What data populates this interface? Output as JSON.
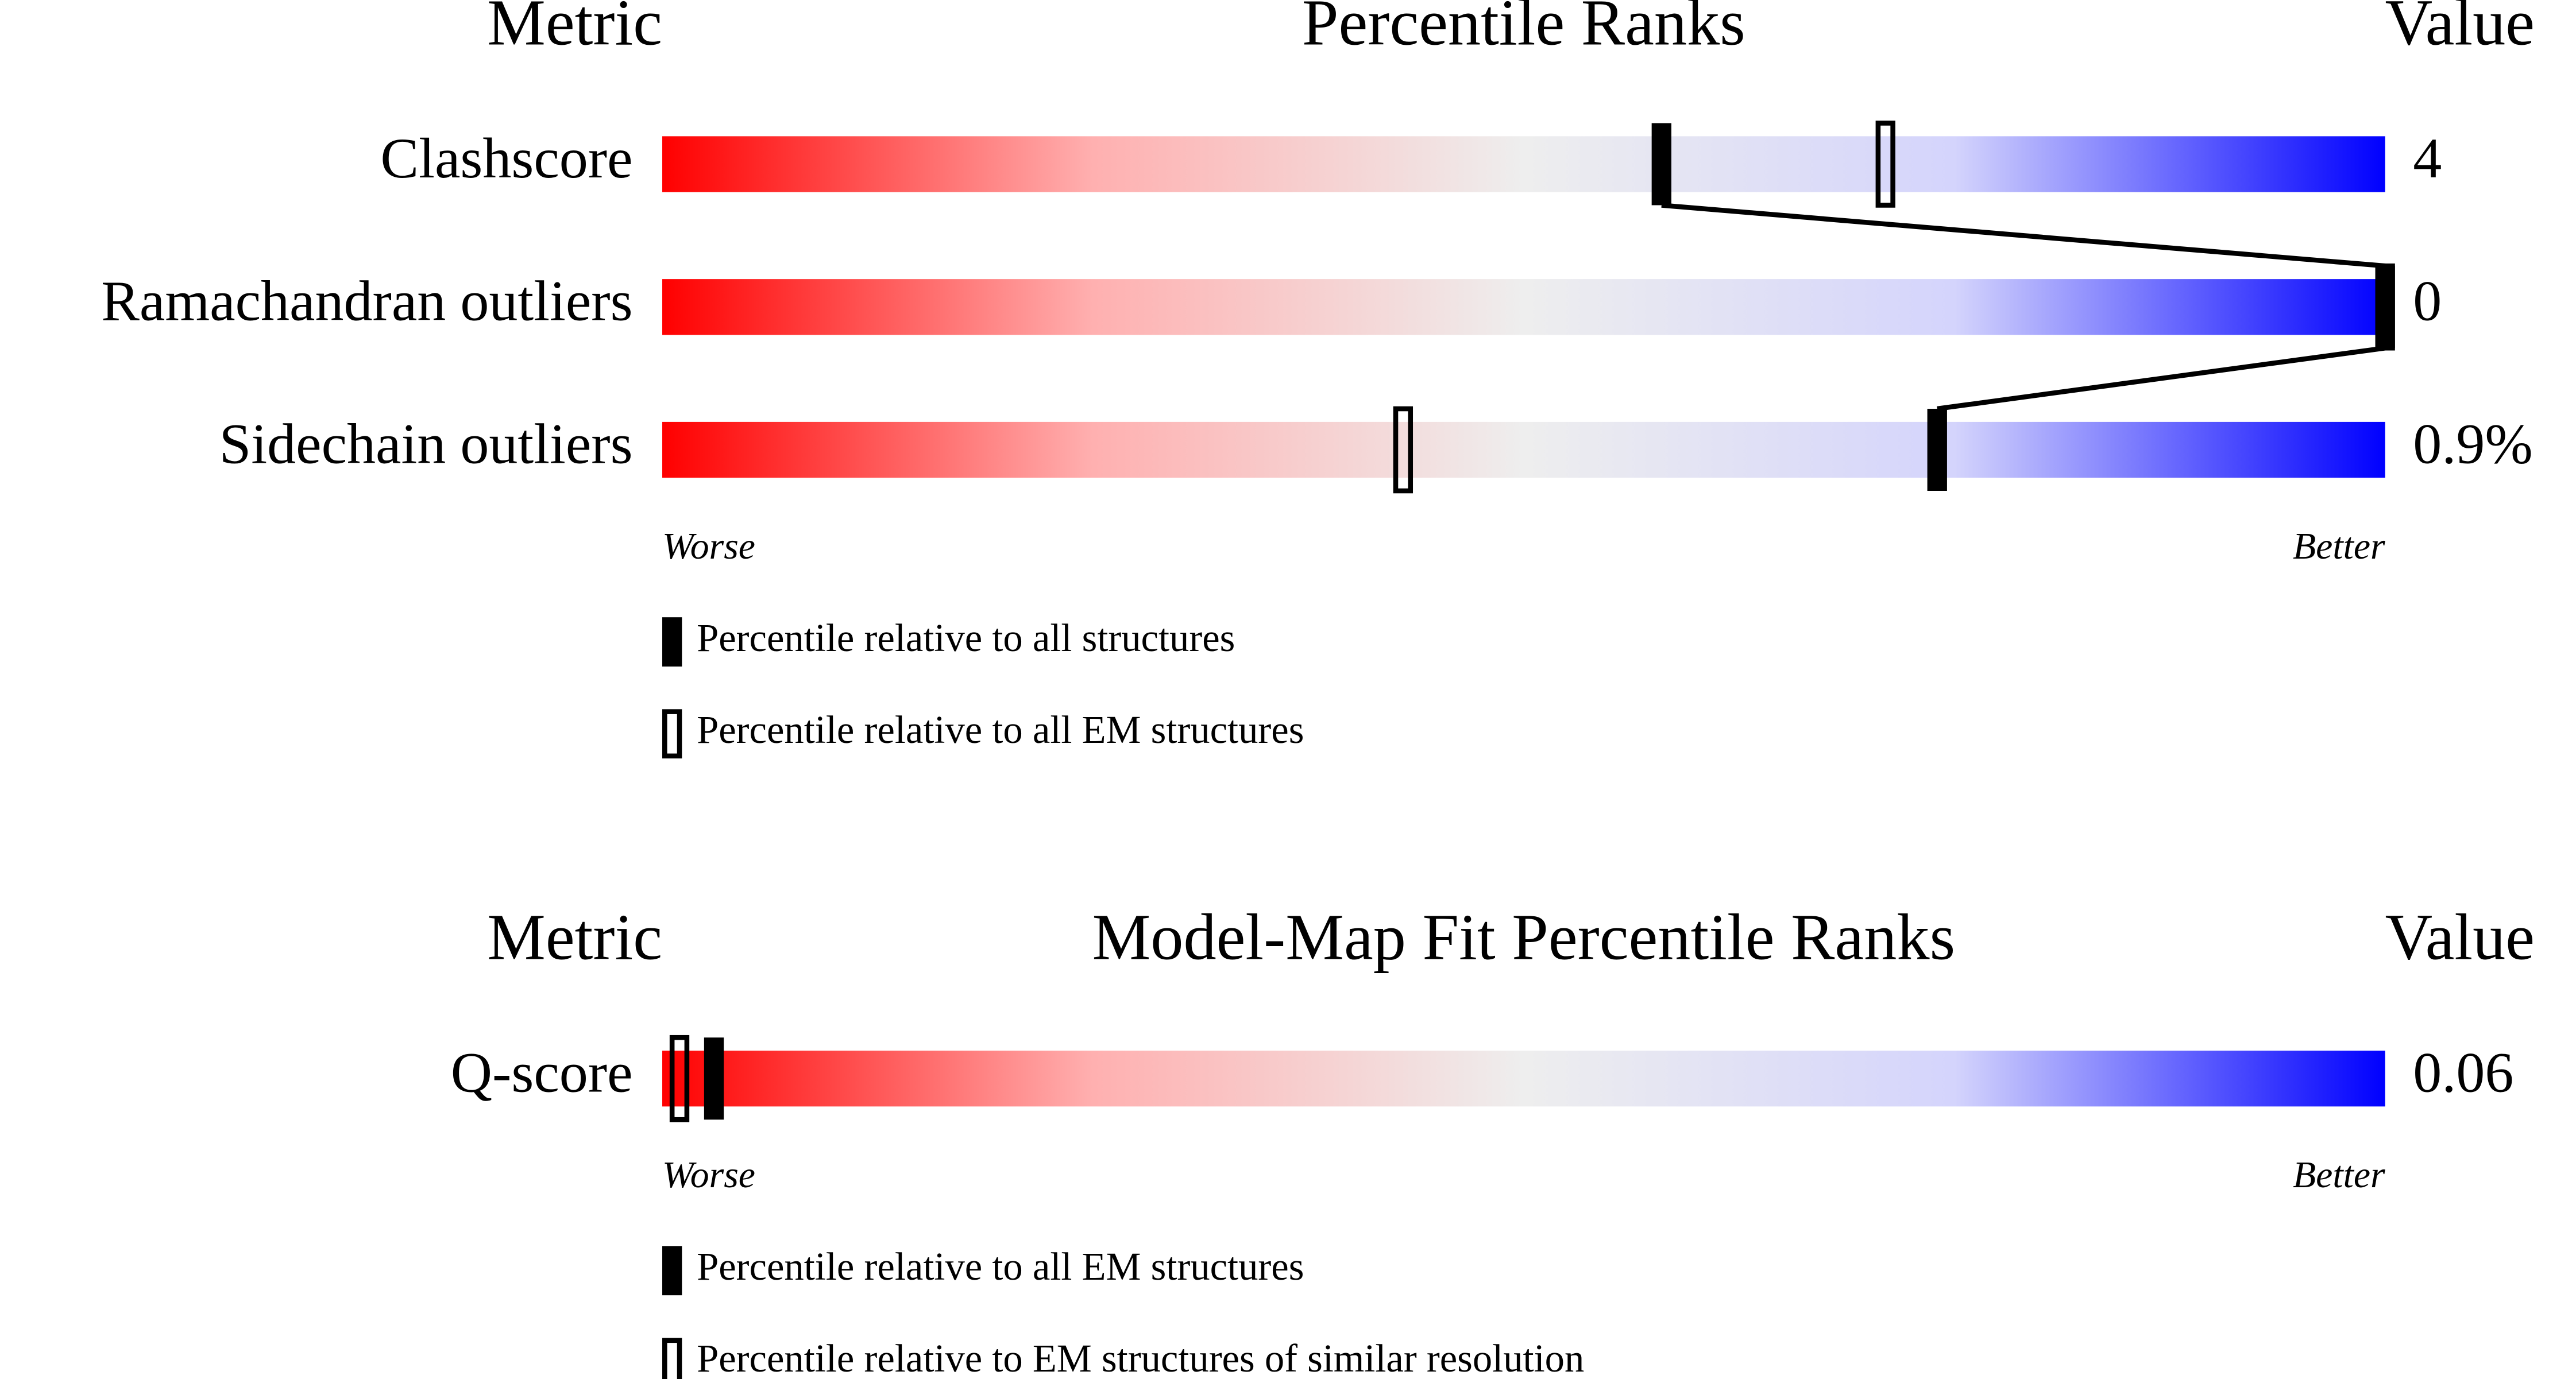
{
  "chart_data": [
    {
      "type": "slider",
      "headers": {
        "metric": "Metric",
        "title": "Percentile Ranks",
        "value": "Value"
      },
      "categories": [
        "Clashscore",
        "Ramachandran outliers",
        "Sidechain outliers"
      ],
      "metric_values": [
        "4",
        "0",
        "0.9%"
      ],
      "xlim": [
        0,
        100
      ],
      "worse": "Worse",
      "better": "Better",
      "gradient": [
        "#ff0000",
        "#ffb0b0",
        "#eeeeee",
        "#d4d4fc",
        "#0000ff"
      ],
      "series": [
        {
          "name": "Percentile relative to all structures",
          "style": "filled",
          "color": "#000000",
          "connect": true,
          "values": [
            58,
            100,
            74
          ]
        },
        {
          "name": "Percentile relative to all EM structures",
          "style": "open",
          "color": "#000000",
          "connect": false,
          "values": [
            71,
            100,
            43
          ]
        }
      ]
    },
    {
      "type": "slider",
      "headers": {
        "metric": "Metric",
        "title": "Model-Map Fit Percentile Ranks",
        "value": "Value"
      },
      "categories": [
        "Q-score"
      ],
      "metric_values": [
        "0.06"
      ],
      "xlim": [
        0,
        100
      ],
      "worse": "Worse",
      "better": "Better",
      "gradient": [
        "#ff0000",
        "#ffb0b0",
        "#eeeeee",
        "#d4d4fc",
        "#0000ff"
      ],
      "series": [
        {
          "name": "Percentile relative to all EM structures",
          "style": "filled",
          "color": "#000000",
          "connect": true,
          "values": [
            3
          ]
        },
        {
          "name": "Percentile relative to EM structures of similar resolution",
          "style": "open",
          "color": "#000000",
          "connect": false,
          "values": [
            1
          ]
        }
      ]
    }
  ]
}
